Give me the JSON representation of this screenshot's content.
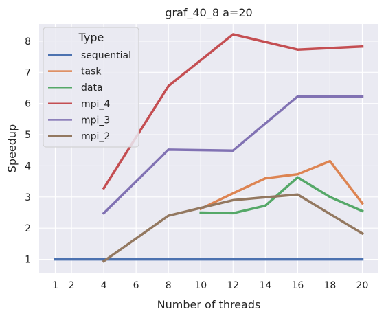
{
  "chart_data": {
    "type": "line",
    "title": "graf_40_8 a=20",
    "xlabel": "Number of threads",
    "ylabel": "Speedup",
    "xlim": [
      0,
      21
    ],
    "ylim": [
      0.55,
      8.55
    ],
    "xticks": [
      1,
      2,
      4,
      6,
      8,
      10,
      12,
      14,
      16,
      18,
      20
    ],
    "yticks": [
      1,
      2,
      3,
      4,
      5,
      6,
      7,
      8
    ],
    "grid": true,
    "legend": {
      "title": "Type",
      "placement": "top-left"
    },
    "series": [
      {
        "name": "sequential",
        "color": "#4c72b0",
        "x": [
          1,
          2,
          4,
          6,
          8,
          10,
          12,
          14,
          16,
          18,
          20
        ],
        "y": [
          1,
          1,
          1,
          1,
          1,
          1,
          1,
          1,
          1,
          1,
          1
        ]
      },
      {
        "name": "task",
        "color": "#dd8452",
        "x": [
          10,
          12,
          14,
          16,
          18,
          20
        ],
        "y": [
          2.62,
          3.12,
          3.6,
          3.73,
          4.15,
          2.8
        ]
      },
      {
        "name": "data",
        "color": "#55a868",
        "x": [
          10,
          12,
          14,
          16,
          18,
          20
        ],
        "y": [
          2.5,
          2.48,
          2.72,
          3.63,
          3.0,
          2.55
        ]
      },
      {
        "name": "mpi_4",
        "color": "#c44e52",
        "x": [
          4,
          8,
          12,
          16,
          20
        ],
        "y": [
          3.28,
          6.56,
          8.22,
          7.73,
          7.83
        ]
      },
      {
        "name": "mpi_3",
        "color": "#8172b3",
        "x": [
          4,
          8,
          12,
          16,
          20
        ],
        "y": [
          2.48,
          4.52,
          4.49,
          6.23,
          6.22
        ]
      },
      {
        "name": "mpi_2",
        "color": "#937860",
        "x": [
          4,
          8,
          12,
          16,
          20
        ],
        "y": [
          0.94,
          2.4,
          2.9,
          3.08,
          1.83
        ]
      }
    ]
  }
}
